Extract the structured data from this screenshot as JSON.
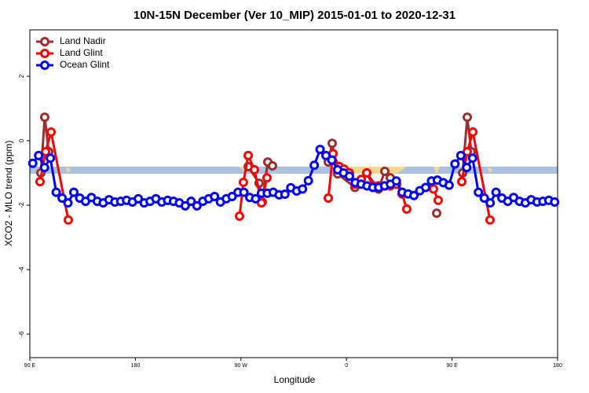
{
  "chart_data": {
    "type": "line",
    "title": "10N-15N December (Ver 10_MIP)   2015-01-01 to 2020-12-31",
    "x_label": "Longitude",
    "y_label": "XCO2 - MLO trend (ppm)",
    "xlim": [
      90,
      540
    ],
    "ylim": [
      -6.73,
      3.44
    ],
    "xticks": [
      {
        "value": 90,
        "label": "90 E"
      },
      {
        "value": 180,
        "label": "180"
      },
      {
        "value": 270,
        "label": "90 W"
      },
      {
        "value": 360,
        "label": "0"
      },
      {
        "value": 450,
        "label": "90 E"
      },
      {
        "value": 540,
        "label": "180"
      }
    ],
    "yticks": [
      2,
      0,
      -2,
      -4,
      -6
    ],
    "legend": "top-left",
    "series": [
      {
        "name": "Land Nadir",
        "color": "#9b2f2f",
        "x": [
          99.4,
          102.7,
          106.1,
          null,
          276.2,
          285.5,
          288.2,
          292.9,
          296.9,
          null,
          344.5,
          347.8,
          352.5,
          367.2,
          377.3,
          387.3,
          392.7,
          397.4,
          null,
          436.9,
          null,
          459,
          463,
          466.4
        ],
        "values": [
          -1.0,
          0.73,
          -0.34,
          null,
          -0.8,
          -1.32,
          -1.9,
          -0.66,
          -0.78,
          null,
          -0.66,
          -0.08,
          -1.03,
          -1.45,
          -1.0,
          -1.5,
          -0.95,
          -1.15,
          null,
          -2.25,
          null,
          -1.0,
          0.73,
          -0.34
        ]
      },
      {
        "name": "Land Glint",
        "color": "#ff0000",
        "x": [
          98.7,
          103.4,
          108.1,
          122.8,
          null,
          268.8,
          272.1,
          276.2,
          281.5,
          287.5,
          292.2,
          null,
          344.5,
          348.5,
          353.8,
          357.9,
          362.5,
          367.2,
          372.6,
          377.3,
          382.6,
          387.3,
          392.7,
          397.4,
          402.7,
          407.4,
          411.4,
          null,
          434.2,
          438.2,
          null,
          458.3,
          463,
          467.7,
          482.4
        ],
        "values": [
          -1.27,
          -0.34,
          0.27,
          -2.46,
          null,
          -2.34,
          -1.29,
          -0.46,
          -0.9,
          -1.93,
          -1.15,
          null,
          -1.78,
          -0.4,
          -0.8,
          -0.88,
          -1.0,
          -1.35,
          -1.2,
          -1.0,
          -1.4,
          -1.4,
          -1.4,
          -1.4,
          -1.35,
          -1.65,
          -2.12,
          null,
          -1.5,
          -1.85,
          null,
          -1.27,
          -0.34,
          0.27,
          -2.46
        ]
      },
      {
        "name": "Ocean Glint",
        "color": "#0000ff",
        "x": [
          92.5,
          97.5,
          102.5,
          107.5,
          112.5,
          117.5,
          122.5,
          127.5,
          132.5,
          137.5,
          142.5,
          147.5,
          152.5,
          157.5,
          162.5,
          167.5,
          172.5,
          177.5,
          182.5,
          187.5,
          192.5,
          197.5,
          202.5,
          207.5,
          212.5,
          217.5,
          222.5,
          227.5,
          232.5,
          237.5,
          242.5,
          247.5,
          252.5,
          257.5,
          262.5,
          267.5,
          272.5,
          277.5,
          282.5,
          287.5,
          292.5,
          297.5,
          302.5,
          307.5,
          312.5,
          317.5,
          322.5,
          327.5,
          332.5,
          337.5,
          342.5,
          347.5,
          352.5,
          357.5,
          362.5,
          367.5,
          372.5,
          377.5,
          382.5,
          387.5,
          392.5,
          397.5,
          402.5,
          407.5,
          412.5,
          417.5,
          422.5,
          427.5,
          432.5,
          437.5,
          442.5,
          447.5,
          452.5,
          457.5,
          462.5,
          467.5,
          472.5,
          477.5,
          482.5,
          487.5,
          492.5,
          497.5,
          502.5,
          507.5,
          512.5,
          517.5,
          522.5,
          527.5,
          532.5,
          537.5
        ],
        "values": [
          -0.7,
          -0.46,
          -0.83,
          -0.54,
          -1.6,
          -1.78,
          -1.93,
          -1.6,
          -1.78,
          -1.88,
          -1.76,
          -1.88,
          -1.93,
          -1.83,
          -1.9,
          -1.88,
          -1.85,
          -1.9,
          -1.8,
          -1.93,
          -1.88,
          -1.8,
          -1.9,
          -1.85,
          -1.88,
          -1.93,
          -2.02,
          -1.88,
          -2.02,
          -1.88,
          -1.8,
          -1.73,
          -1.9,
          -1.8,
          -1.73,
          -1.6,
          -1.6,
          -1.76,
          -1.8,
          -1.63,
          -1.63,
          -1.6,
          -1.68,
          -1.66,
          -1.46,
          -1.56,
          -1.5,
          -1.24,
          -0.76,
          -0.27,
          -0.46,
          -0.6,
          -0.9,
          -1.0,
          -1.1,
          -1.3,
          -1.35,
          -1.4,
          -1.45,
          -1.45,
          -1.4,
          -1.35,
          -1.25,
          -1.6,
          -1.65,
          -1.7,
          -1.55,
          -1.45,
          -1.25,
          -1.22,
          -1.3,
          -1.38,
          -0.72,
          -0.46,
          -0.83,
          -0.54,
          -1.6,
          -1.78,
          -1.93,
          -1.6,
          -1.78,
          -1.88,
          -1.76,
          -1.88,
          -1.93,
          -1.83,
          -1.9,
          -1.88,
          -1.85,
          -1.9
        ]
      }
    ]
  }
}
